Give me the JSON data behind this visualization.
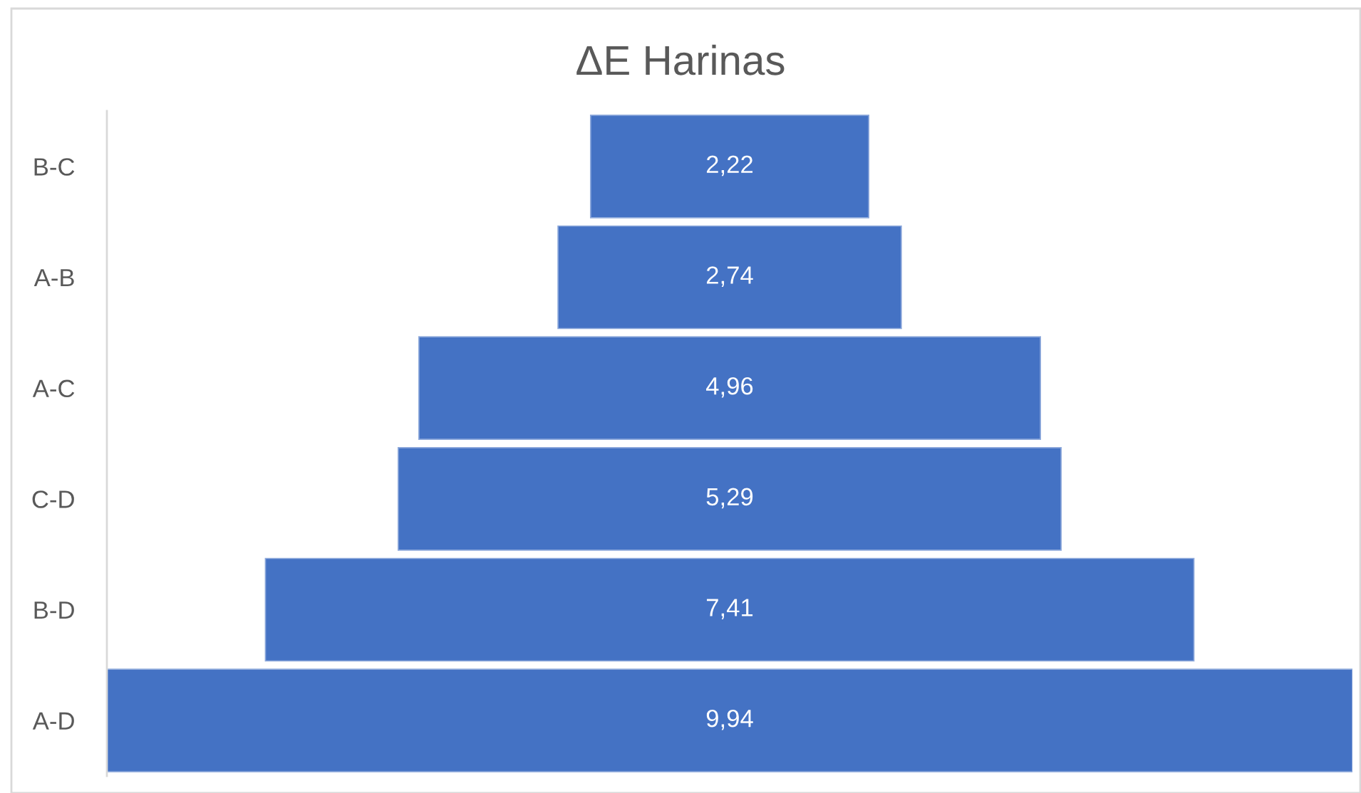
{
  "chart_data": {
    "type": "other",
    "title": "ΔE Harinas",
    "categories": [
      "B-C",
      "A-B",
      "A-C",
      "C-D",
      "B-D",
      "A-D"
    ],
    "values": [
      2.22,
      2.74,
      4.96,
      5.29,
      7.41,
      9.94
    ],
    "value_labels": [
      "2,22",
      "2,74",
      "4,96",
      "5,29",
      "7,41",
      "9,94"
    ],
    "color": "#4472c4"
  }
}
